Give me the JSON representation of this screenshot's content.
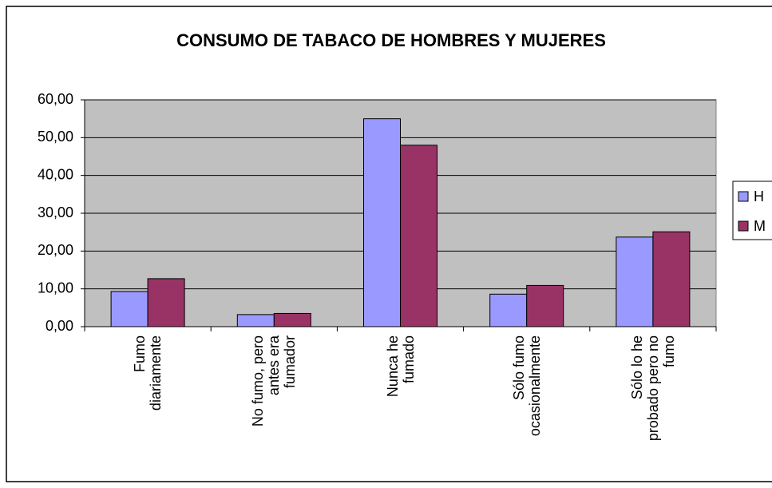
{
  "chart_data": {
    "type": "bar",
    "title": "CONSUMO DE TABACO DE HOMBRES Y MUJERES",
    "categories": [
      "Fumo\ndiariamente",
      "No fumo, pero\nantes era\nfumador",
      "Nunca he\nfumado",
      "Sólo fumo\nocasionalmente",
      "Sólo lo he\nprobado pero no\nfumo"
    ],
    "series": [
      {
        "name": "H",
        "color": "#9999ff",
        "values": [
          9.3,
          3.2,
          55.0,
          8.6,
          23.7
        ]
      },
      {
        "name": "M",
        "color": "#993366",
        "values": [
          12.7,
          3.5,
          48.0,
          10.9,
          25.1
        ]
      }
    ],
    "ylim": [
      0,
      60
    ],
    "yticks": [
      {
        "value": 0,
        "label": "0,00"
      },
      {
        "value": 10,
        "label": "10,00"
      },
      {
        "value": 20,
        "label": "20,00"
      },
      {
        "value": 30,
        "label": "30,00"
      },
      {
        "value": 40,
        "label": "40,00"
      },
      {
        "value": 50,
        "label": "50,00"
      },
      {
        "value": 60,
        "label": "60,00"
      }
    ],
    "grid": true,
    "legend": "right"
  }
}
